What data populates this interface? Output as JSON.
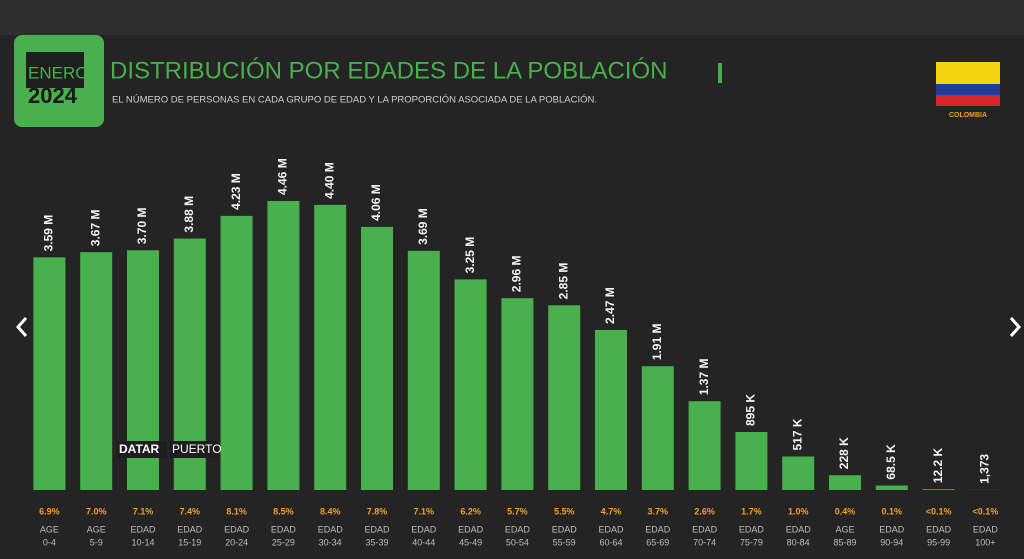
{
  "badge": {
    "month": "ENERO",
    "year": "2024"
  },
  "flag_label": "COLOMBIA",
  "watermark": [
    "DATAR",
    "PUERTO"
  ],
  "chart_data": {
    "type": "bar",
    "title": "DISTRIBUCIÓN POR EDADES DE LA POBLACIÓN",
    "subtitle": "EL NÚMERO DE PERSONAS EN CADA GRUPO DE EDAD Y LA PROPORCIÓN ASOCIADA DE LA POBLACIÓN.",
    "category_prefixes": [
      "AGE",
      "AGE",
      "EDAD",
      "EDAD",
      "EDAD",
      "EDAD",
      "EDAD",
      "EDAD",
      "EDAD",
      "EDAD",
      "EDAD",
      "EDAD",
      "EDAD",
      "EDAD",
      "EDAD",
      "EDAD",
      "EDAD",
      "AGE",
      "EDAD",
      "EDAD",
      "EDAD"
    ],
    "categories": [
      "0-4",
      "5-9",
      "10-14",
      "15-19",
      "20-24",
      "25-29",
      "30-34",
      "35-39",
      "40-44",
      "45-49",
      "50-54",
      "55-59",
      "60-64",
      "65-69",
      "70-74",
      "75-79",
      "80-84",
      "85-89",
      "90-94",
      "95-99",
      "100+"
    ],
    "values": [
      3590000,
      3670000,
      3700000,
      3880000,
      4230000,
      4460000,
      4400000,
      4060000,
      3690000,
      3250000,
      2960000,
      2850000,
      2470000,
      1910000,
      1370000,
      895000,
      517000,
      228000,
      68500,
      12200,
      1373
    ],
    "value_labels": [
      "3.59 M",
      "3.67 M",
      "3.70 M",
      "3.88 M",
      "4.23 M",
      "4.46 M",
      "4.40 M",
      "4.06 M",
      "3.69 M",
      "3.25 M",
      "2.96 M",
      "2.85 M",
      "2.47 M",
      "1.91 M",
      "1.37 M",
      "895 K",
      "517 K",
      "228 K",
      "68.5 K",
      "12.2 K",
      "1,373"
    ],
    "share_labels": [
      "6.9%",
      "7.0%",
      "7.1%",
      "7.4%",
      "8.1%",
      "8.5%",
      "8.4%",
      "7.8%",
      "7.1%",
      "6.2%",
      "5.7%",
      "5.5%",
      "4.7%",
      "3.7%",
      "2.6%",
      "1.7%",
      "1.0%",
      "0.4%",
      "0.1%",
      "<0.1%",
      "<0.1%"
    ],
    "color": "#48b04c",
    "ylim": [
      0,
      5000000
    ]
  }
}
